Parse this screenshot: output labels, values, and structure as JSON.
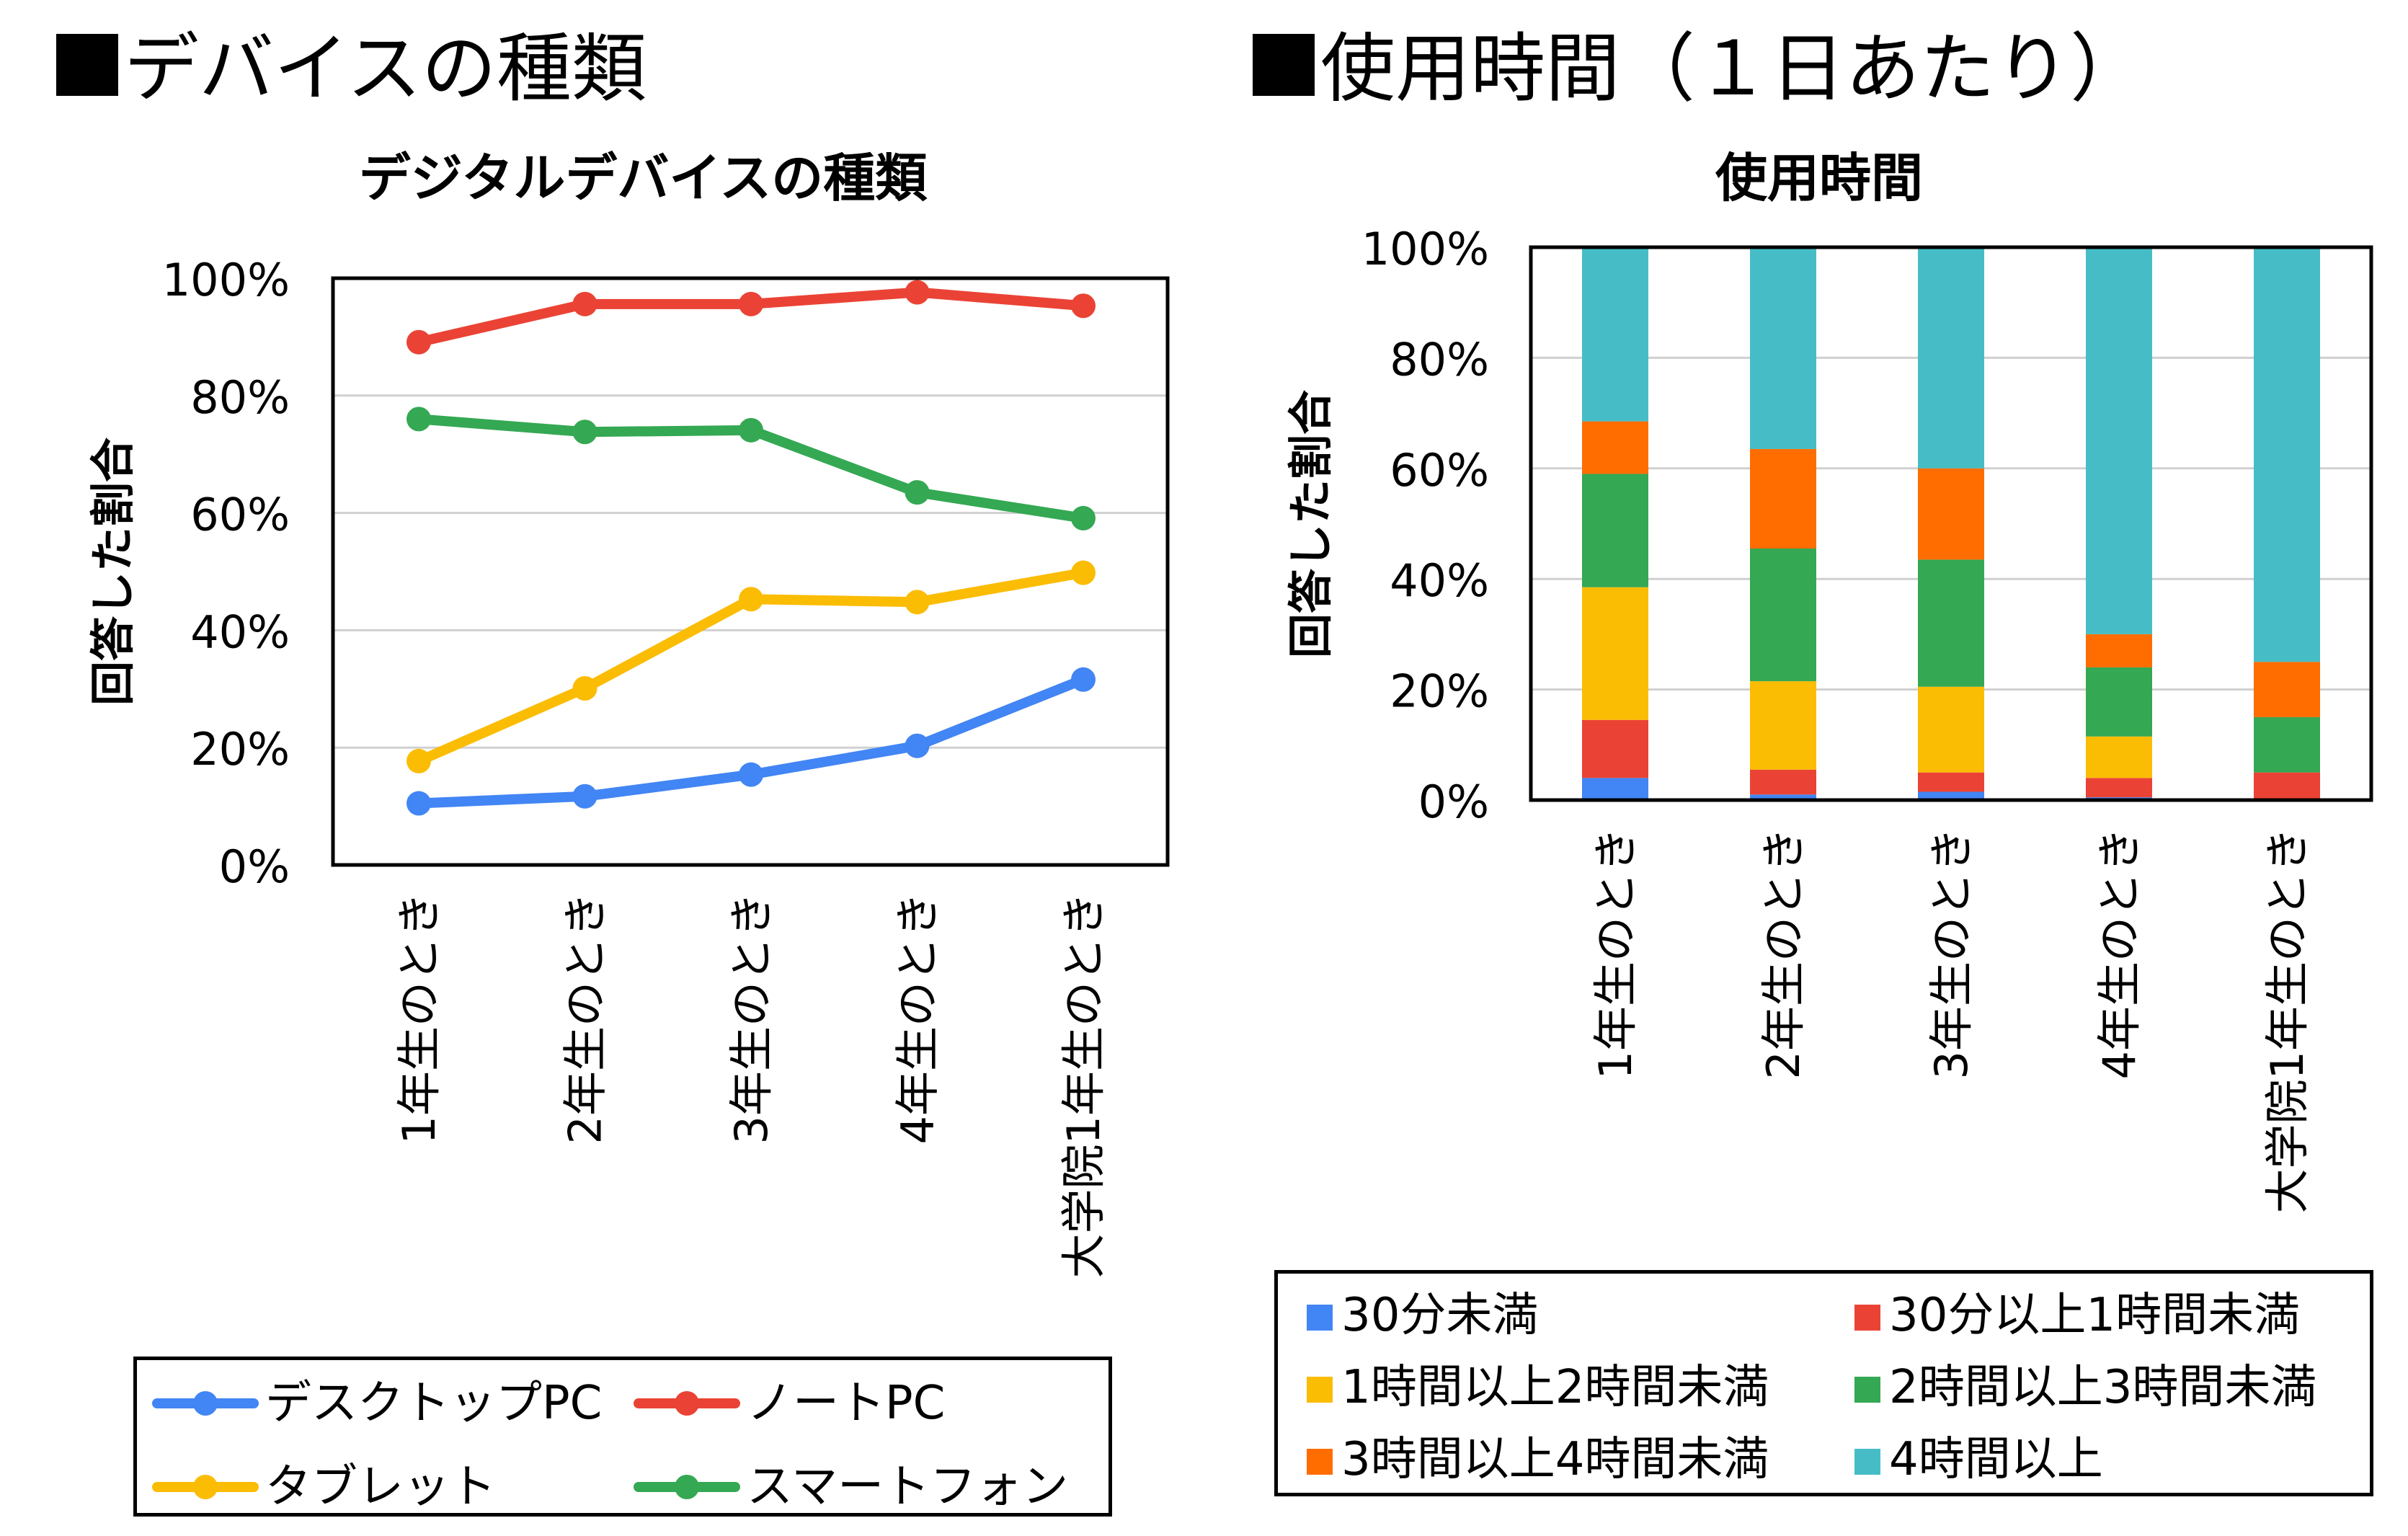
{
  "headings": {
    "left": "デバイスの種類",
    "right": "使用時間（１日あたり）"
  },
  "chart_data": [
    {
      "type": "line",
      "title": "デジタルデバイスの種類",
      "xlabel": "",
      "ylabel": "回答した割合",
      "ylim": [
        0,
        100
      ],
      "yticks": [
        "0%",
        "20%",
        "40%",
        "60%",
        "80%",
        "100%"
      ],
      "grid": true,
      "legend_position": "bottom",
      "categories": [
        "1年生のとき",
        "2年生のとき",
        "3年生のとき",
        "4年生のとき",
        "大学院1年生のとき"
      ],
      "series": [
        {
          "name": "デスクトップPC",
          "color": "#4285f4",
          "values": [
            10.5,
            11.7,
            15.4,
            20.3,
            31.6
          ]
        },
        {
          "name": "ノートPC",
          "color": "#ea4335",
          "values": [
            89.1,
            95.6,
            95.6,
            97.6,
            95.3
          ]
        },
        {
          "name": "タブレット",
          "color": "#fbbc04",
          "values": [
            17.7,
            30.1,
            45.3,
            44.8,
            49.8
          ]
        },
        {
          "name": "スマートフォン",
          "color": "#34a853",
          "values": [
            76.0,
            73.8,
            74.1,
            63.5,
            59.1
          ]
        }
      ]
    },
    {
      "type": "bar",
      "stacked": true,
      "title": "使用時間",
      "xlabel": "",
      "ylabel": "回答した割合",
      "ylim": [
        0,
        100
      ],
      "yticks": [
        "0%",
        "20%",
        "40%",
        "60%",
        "80%",
        "100%"
      ],
      "grid": true,
      "legend_position": "bottom",
      "categories": [
        "1年生のとき",
        "2年生のとき",
        "3年生のとき",
        "4年生のとき",
        "大学院1年生のとき"
      ],
      "series": [
        {
          "name": "30分未満",
          "color": "#4285f4",
          "values": [
            4,
            1,
            1.5,
            0.5,
            0
          ]
        },
        {
          "name": "30分以上1時間未満",
          "color": "#ea4335",
          "values": [
            10.5,
            4.5,
            3.5,
            3.5,
            5
          ]
        },
        {
          "name": "1時間以上2時間未満",
          "color": "#fbbc04",
          "values": [
            24,
            16,
            15.5,
            7.5,
            0
          ]
        },
        {
          "name": "2時間以上3時間未満",
          "color": "#34a853",
          "values": [
            20.5,
            24,
            23,
            12.5,
            10
          ]
        },
        {
          "name": "3時間以上4時間未満",
          "color": "#ff6d01",
          "values": [
            9.5,
            18,
            16.5,
            6,
            10
          ]
        },
        {
          "name": "4時間以上",
          "color": "#46bdc6",
          "values": [
            31.5,
            36.5,
            40,
            70,
            75
          ]
        }
      ]
    }
  ]
}
